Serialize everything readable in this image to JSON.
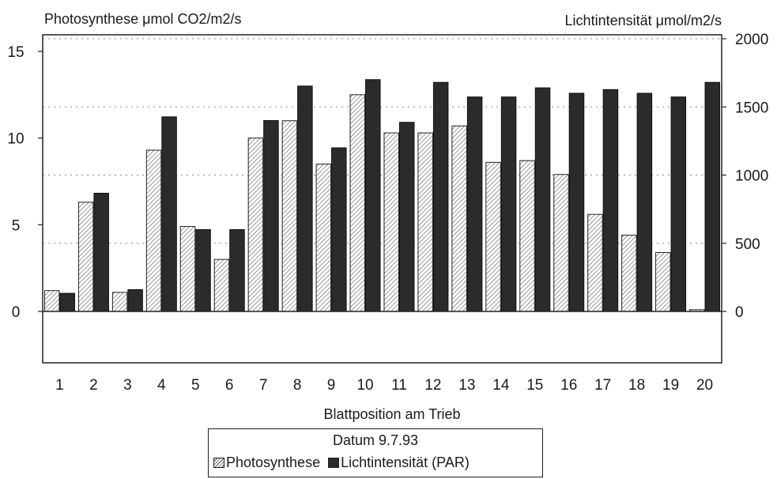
{
  "chart_data": {
    "type": "bar",
    "left_axis_title": "Photosynthese μmol CO2/m2/s",
    "right_axis_title": "Lichtintensität μmol/m2/s",
    "xlabel": "Blattposition am Trieb",
    "categories": [
      "1",
      "2",
      "3",
      "4",
      "5",
      "6",
      "7",
      "8",
      "9",
      "10",
      "11",
      "12",
      "13",
      "14",
      "15",
      "16",
      "17",
      "18",
      "19",
      "20"
    ],
    "y_left": {
      "ylim": [
        -3,
        16
      ],
      "ticks": [
        "0",
        "5",
        "10",
        "15"
      ],
      "tick_values": [
        0,
        5,
        10,
        15
      ]
    },
    "y_right": {
      "ylim": [
        -400,
        2133
      ],
      "ticks": [
        "0",
        "500",
        "1000",
        "1500",
        "2000"
      ],
      "tick_values": [
        0,
        500,
        1000,
        1500,
        2000
      ]
    },
    "grid": "dotted horizontal lines at right-axis 500 intervals",
    "legend_title": "Datum 9.7.93",
    "legend_position": "bottom-center",
    "series": [
      {
        "name": "Photosynthese",
        "axis": "left",
        "fill": "hatched",
        "values": [
          1.2,
          6.3,
          1.1,
          9.3,
          4.9,
          3.0,
          10.0,
          11.0,
          8.5,
          12.5,
          10.3,
          10.3,
          10.7,
          8.6,
          8.7,
          7.9,
          5.6,
          4.4,
          3.4,
          0.1
        ]
      },
      {
        "name": "Lichtintensität (PAR)",
        "axis": "right",
        "fill": "dark",
        "values": [
          133,
          867,
          160,
          1427,
          600,
          600,
          1400,
          1653,
          1200,
          1700,
          1387,
          1680,
          1573,
          1573,
          1640,
          1600,
          1627,
          1600,
          1573,
          1680
        ]
      }
    ],
    "colors": {
      "dark_bar": "#2b2b2b",
      "hatch": "#555555",
      "axis": "#222222",
      "grid": "#888888"
    }
  }
}
